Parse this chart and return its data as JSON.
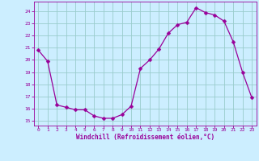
{
  "x": [
    0,
    1,
    2,
    3,
    4,
    5,
    6,
    7,
    8,
    9,
    10,
    11,
    12,
    13,
    14,
    15,
    16,
    17,
    18,
    19,
    20,
    21,
    22,
    23
  ],
  "y": [
    20.8,
    19.9,
    16.3,
    16.1,
    15.9,
    15.9,
    15.4,
    15.2,
    15.2,
    15.5,
    16.2,
    19.3,
    20.0,
    20.9,
    22.2,
    22.9,
    23.1,
    24.3,
    23.9,
    23.7,
    23.2,
    21.5,
    19.0,
    16.9
  ],
  "line_color": "#990099",
  "marker": "D",
  "marker_size": 2.5,
  "bg_color": "#cceeff",
  "grid_color": "#99cccc",
  "ylabel_ticks": [
    15,
    16,
    17,
    18,
    19,
    20,
    21,
    22,
    23,
    24
  ],
  "xlabel_ticks": [
    0,
    1,
    2,
    3,
    4,
    5,
    6,
    7,
    8,
    9,
    10,
    11,
    12,
    13,
    14,
    15,
    16,
    17,
    18,
    19,
    20,
    21,
    22,
    23
  ],
  "ylim": [
    14.6,
    24.8
  ],
  "xlim": [
    -0.5,
    23.5
  ],
  "xlabel": "Windchill (Refroidissement éolien,°C)",
  "xlabel_color": "#990099",
  "tick_color": "#990099",
  "axis_color": "#990099"
}
